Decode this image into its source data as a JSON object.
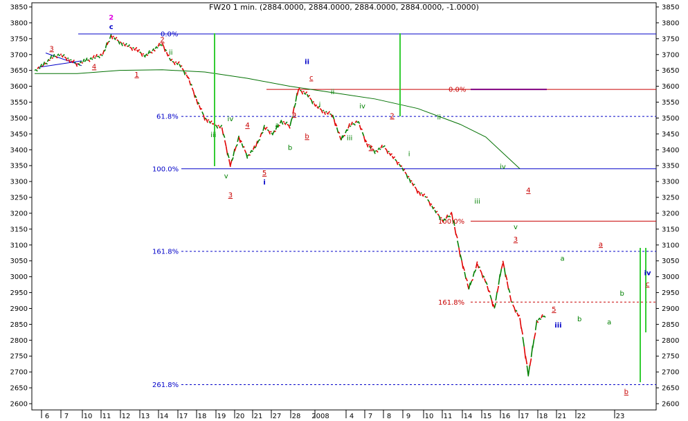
{
  "chart_data": {
    "type": "line",
    "title": "FW20 1 min. (2884.0000, 2884.0000, 2884.0000, 2884.0000, -1.0000)",
    "ylim": [
      2600,
      3850
    ],
    "yticks": [
      2600,
      2650,
      2700,
      2750,
      2800,
      2850,
      2900,
      2950,
      3000,
      3050,
      3100,
      3150,
      3200,
      3250,
      3300,
      3350,
      3400,
      3450,
      3500,
      3550,
      3600,
      3650,
      3700,
      3750,
      3800,
      3850
    ],
    "x_tick_labels": [
      "6",
      "7",
      "10",
      "11",
      "12",
      "13",
      "14",
      "17",
      "18",
      "19",
      "20",
      "21",
      "27",
      "28",
      "2008",
      "4",
      "7",
      "8",
      "9",
      "10",
      "11",
      "14",
      "15",
      "16",
      "17",
      "18",
      "21",
      "22",
      "23"
    ],
    "price_series": {
      "name": "",
      "colors": {
        "up": "#008000",
        "down": "#e00000"
      },
      "points": [
        [
          0,
          3650
        ],
        [
          1,
          3665
        ],
        [
          2,
          3690
        ],
        [
          3,
          3700
        ],
        [
          4,
          3685
        ],
        [
          5,
          3670
        ],
        [
          6,
          3680
        ],
        [
          7,
          3690
        ],
        [
          8,
          3700
        ],
        [
          9,
          3760
        ],
        [
          10,
          3740
        ],
        [
          11,
          3725
        ],
        [
          12,
          3715
        ],
        [
          13,
          3695
        ],
        [
          14,
          3715
        ],
        [
          15,
          3735
        ],
        [
          16,
          3680
        ],
        [
          17,
          3670
        ],
        [
          18,
          3630
        ],
        [
          19,
          3560
        ],
        [
          20,
          3500
        ],
        [
          21,
          3480
        ],
        [
          22,
          3470
        ],
        [
          23,
          3350
        ],
        [
          24,
          3440
        ],
        [
          25,
          3380
        ],
        [
          26,
          3410
        ],
        [
          27,
          3470
        ],
        [
          28,
          3450
        ],
        [
          29,
          3490
        ],
        [
          30,
          3475
        ],
        [
          31,
          3590
        ],
        [
          32,
          3575
        ],
        [
          33,
          3540
        ],
        [
          34,
          3520
        ],
        [
          35,
          3510
        ],
        [
          36,
          3430
        ],
        [
          37,
          3475
        ],
        [
          38,
          3490
        ],
        [
          39,
          3420
        ],
        [
          40,
          3395
        ],
        [
          41,
          3410
        ],
        [
          42,
          3380
        ],
        [
          43,
          3350
        ],
        [
          44,
          3310
        ],
        [
          45,
          3270
        ],
        [
          46,
          3250
        ],
        [
          47,
          3210
        ],
        [
          48,
          3175
        ],
        [
          49,
          3200
        ],
        [
          50,
          3070
        ],
        [
          51,
          2960
        ],
        [
          52,
          3040
        ],
        [
          53,
          2985
        ],
        [
          54,
          2900
        ],
        [
          55,
          3050
        ],
        [
          56,
          2920
        ],
        [
          57,
          2870
        ],
        [
          58,
          2690
        ],
        [
          59,
          2860
        ],
        [
          60,
          2880
        ]
      ]
    },
    "moving_average": {
      "name": "",
      "color": "#007000",
      "points": [
        [
          0,
          3640
        ],
        [
          5,
          3640
        ],
        [
          10,
          3650
        ],
        [
          15,
          3652
        ],
        [
          20,
          3645
        ],
        [
          25,
          3625
        ],
        [
          30,
          3600
        ],
        [
          35,
          3580
        ],
        [
          40,
          3560
        ],
        [
          45,
          3530
        ],
        [
          50,
          3480
        ],
        [
          53,
          3440
        ],
        [
          55,
          3390
        ],
        [
          57,
          3340
        ]
      ]
    },
    "fib_levels": [
      {
        "label": "0.0%",
        "value": 3765,
        "color": "#0000c8",
        "style": "solid"
      },
      {
        "label": "61.8%",
        "value": 3505,
        "color": "#0000c8",
        "style": "dash"
      },
      {
        "label": "100.0%",
        "value": 3340,
        "color": "#0000c8",
        "style": "solid"
      },
      {
        "label": "161.8%",
        "value": 3080,
        "color": "#0000c8",
        "style": "dash"
      },
      {
        "label": "261.8%",
        "value": 2660,
        "color": "#0000c8",
        "style": "dash"
      },
      {
        "label": "0.0%",
        "value": 3590,
        "color": "#c80000",
        "style": "solid"
      },
      {
        "label": "100.0%",
        "value": 3175,
        "color": "#c80000",
        "style": "solid"
      },
      {
        "label": "161.8%",
        "value": 2920,
        "color": "#c80000",
        "style": "dash"
      }
    ],
    "wave_labels": [
      {
        "text": "2",
        "color": "#e000e0",
        "x": 9,
        "y": 3810
      },
      {
        "text": "c",
        "color": "#0000c8",
        "x": 9,
        "y": 3780
      },
      {
        "text": "3",
        "color": "#c80000",
        "x": 2,
        "y": 3712
      },
      {
        "text": "4",
        "color": "#c80000",
        "x": 7,
        "y": 3655
      },
      {
        "text": "1",
        "color": "#c80000",
        "x": 12,
        "y": 3630
      },
      {
        "text": "2",
        "color": "#c80000",
        "x": 15,
        "y": 3740
      },
      {
        "text": "ii",
        "color": "#008000",
        "x": 16,
        "y": 3700
      },
      {
        "text": "iii",
        "color": "#008000",
        "x": 21,
        "y": 3440
      },
      {
        "text": "iv",
        "color": "#008000",
        "x": 23,
        "y": 3490
      },
      {
        "text": "v",
        "color": "#008000",
        "x": 22.5,
        "y": 3310
      },
      {
        "text": "3",
        "color": "#c80000",
        "x": 23,
        "y": 3250
      },
      {
        "text": "4",
        "color": "#c80000",
        "x": 25,
        "y": 3470
      },
      {
        "text": "5",
        "color": "#c80000",
        "x": 27,
        "y": 3320
      },
      {
        "text": "i",
        "color": "#0000c8",
        "x": 27,
        "y": 3290
      },
      {
        "text": "a",
        "color": "#008000",
        "x": 28.5,
        "y": 3470
      },
      {
        "text": "b",
        "color": "#008000",
        "x": 30,
        "y": 3400
      },
      {
        "text": "a",
        "color": "#c80000",
        "x": 30.5,
        "y": 3505
      },
      {
        "text": "b",
        "color": "#c80000",
        "x": 32,
        "y": 3435
      },
      {
        "text": "ii",
        "color": "#0000c8",
        "x": 32,
        "y": 3670
      },
      {
        "text": "c",
        "color": "#c80000",
        "x": 32.5,
        "y": 3620
      },
      {
        "text": "i",
        "color": "#008000",
        "x": 33.5,
        "y": 3535
      },
      {
        "text": "ii",
        "color": "#008000",
        "x": 35,
        "y": 3575
      },
      {
        "text": "iii",
        "color": "#008000",
        "x": 37,
        "y": 3430
      },
      {
        "text": "iv",
        "color": "#008000",
        "x": 38.5,
        "y": 3530
      },
      {
        "text": "1",
        "color": "#c80000",
        "x": 39.5,
        "y": 3400
      },
      {
        "text": "2",
        "color": "#c80000",
        "x": 42,
        "y": 3500
      },
      {
        "text": "i",
        "color": "#008000",
        "x": 44,
        "y": 3380
      },
      {
        "text": "ii",
        "color": "#008000",
        "x": 47.5,
        "y": 3495
      },
      {
        "text": "iii",
        "color": "#008000",
        "x": 52,
        "y": 3230
      },
      {
        "text": "iv",
        "color": "#008000",
        "x": 55,
        "y": 3340
      },
      {
        "text": "4",
        "color": "#c80000",
        "x": 58,
        "y": 3265
      },
      {
        "text": "v",
        "color": "#008000",
        "x": 56.5,
        "y": 3150
      },
      {
        "text": "3",
        "color": "#c80000",
        "x": 56.5,
        "y": 3110
      },
      {
        "text": "a",
        "color": "#008000",
        "x": 62,
        "y": 3050
      },
      {
        "text": "5",
        "color": "#c80000",
        "x": 61,
        "y": 2890
      },
      {
        "text": "iii",
        "color": "#0000c8",
        "x": 61.5,
        "y": 2840
      },
      {
        "text": "b",
        "color": "#008000",
        "x": 64,
        "y": 2860
      },
      {
        "text": "a",
        "color": "#c80000",
        "x": 66.5,
        "y": 3095
      },
      {
        "text": "b",
        "color": "#008000",
        "x": 69,
        "y": 2940
      },
      {
        "text": "a",
        "color": "#008000",
        "x": 67.5,
        "y": 2850
      },
      {
        "text": "b",
        "color": "#c80000",
        "x": 69.5,
        "y": 2630
      },
      {
        "text": "iv",
        "color": "#0000c8",
        "x": 72,
        "y": 3005
      },
      {
        "text": "c",
        "color": "#c80000",
        "x": 72,
        "y": 2970
      }
    ]
  }
}
